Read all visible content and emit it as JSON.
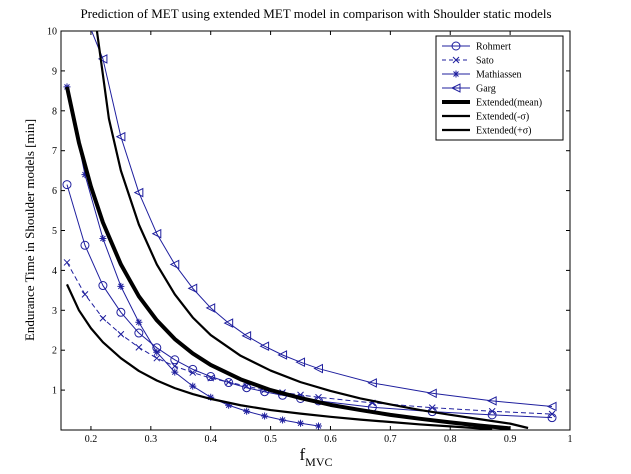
{
  "chart_data": {
    "type": "line",
    "title": "Prediction of MET using extended MET model in comparison with Shoulder static models",
    "xlabel_main": "f",
    "xlabel_sub": "MVC",
    "ylabel": "Endurance Time in Shoulder models [min]",
    "xlim": [
      0.15,
      1.0
    ],
    "ylim": [
      0,
      10
    ],
    "xticks": [
      0.2,
      0.3,
      0.4,
      0.5,
      0.6,
      0.7,
      0.8,
      0.9,
      1
    ],
    "xtick_labels": [
      "0.2",
      "0.3",
      "0.4",
      "0.5",
      "0.6",
      "0.7",
      "0.8",
      "0.9",
      "1"
    ],
    "yticks": [
      1,
      2,
      3,
      4,
      5,
      6,
      7,
      8,
      9,
      10
    ],
    "ytick_labels": [
      "1",
      "2",
      "3",
      "4",
      "5",
      "6",
      "7",
      "8",
      "9",
      "10"
    ],
    "grid": false,
    "legend_position": "top-right",
    "series": [
      {
        "name": "Rohmert",
        "color": "#1f1f9e",
        "marker": "circle",
        "dash": "solid",
        "width": 1,
        "x": [
          0.16,
          0.19,
          0.22,
          0.25,
          0.28,
          0.31,
          0.34,
          0.37,
          0.4,
          0.43,
          0.46,
          0.49,
          0.52,
          0.55,
          0.58,
          0.67,
          0.77,
          0.87,
          0.97
        ],
        "y": [
          6.15,
          4.63,
          3.62,
          2.95,
          2.43,
          2.06,
          1.76,
          1.52,
          1.34,
          1.19,
          1.06,
          0.96,
          0.87,
          0.79,
          0.73,
          0.57,
          0.46,
          0.38,
          0.31
        ]
      },
      {
        "name": "Sato",
        "color": "#1f1f9e",
        "marker": "x",
        "dash": "dashed",
        "width": 1,
        "x": [
          0.16,
          0.19,
          0.22,
          0.25,
          0.28,
          0.31,
          0.34,
          0.37,
          0.4,
          0.43,
          0.46,
          0.49,
          0.52,
          0.55,
          0.58,
          0.67,
          0.77,
          0.87,
          0.97
        ],
        "y": [
          4.2,
          3.4,
          2.8,
          2.4,
          2.07,
          1.8,
          1.6,
          1.44,
          1.3,
          1.2,
          1.1,
          1.0,
          0.94,
          0.88,
          0.82,
          0.68,
          0.56,
          0.47,
          0.4
        ]
      },
      {
        "name": "Mathiassen",
        "color": "#1f1f9e",
        "marker": "star",
        "dash": "solid",
        "width": 1,
        "x": [
          0.16,
          0.19,
          0.22,
          0.25,
          0.28,
          0.31,
          0.34,
          0.37,
          0.4,
          0.43,
          0.46,
          0.49,
          0.52,
          0.55,
          0.58
        ],
        "y": [
          8.6,
          6.4,
          4.8,
          3.6,
          2.7,
          1.95,
          1.45,
          1.1,
          0.82,
          0.62,
          0.47,
          0.35,
          0.25,
          0.17,
          0.1
        ]
      },
      {
        "name": "Garg",
        "color": "#1f1f9e",
        "marker": "triangle-left",
        "dash": "solid",
        "width": 1,
        "x": [
          0.185,
          0.22,
          0.25,
          0.28,
          0.31,
          0.34,
          0.37,
          0.4,
          0.43,
          0.46,
          0.49,
          0.52,
          0.55,
          0.58,
          0.67,
          0.77,
          0.87,
          0.97
        ],
        "y": [
          10.6,
          9.3,
          7.35,
          5.95,
          4.92,
          4.15,
          3.55,
          3.06,
          2.68,
          2.36,
          2.1,
          1.88,
          1.7,
          1.54,
          1.18,
          0.92,
          0.73,
          0.59
        ]
      },
      {
        "name": "Extended(mean)",
        "color": "#000000",
        "marker": "none",
        "dash": "solid",
        "width": 4,
        "x": [
          0.16,
          0.18,
          0.2,
          0.22,
          0.25,
          0.28,
          0.31,
          0.34,
          0.37,
          0.4,
          0.45,
          0.5,
          0.55,
          0.6,
          0.65,
          0.7,
          0.75,
          0.8,
          0.85,
          0.9
        ],
        "y": [
          8.6,
          7.2,
          6.1,
          5.2,
          4.15,
          3.35,
          2.75,
          2.28,
          1.92,
          1.63,
          1.27,
          1.0,
          0.8,
          0.63,
          0.5,
          0.38,
          0.28,
          0.19,
          0.11,
          0.04
        ]
      },
      {
        "name": "Extended(-σ)",
        "color": "#000000",
        "marker": "none",
        "dash": "solid",
        "width": 2.2,
        "x": [
          0.21,
          0.23,
          0.25,
          0.28,
          0.31,
          0.34,
          0.37,
          0.4,
          0.45,
          0.5,
          0.55,
          0.6,
          0.65,
          0.7,
          0.75,
          0.8,
          0.85,
          0.9,
          0.93
        ],
        "y": [
          10.0,
          7.8,
          6.5,
          5.15,
          4.15,
          3.4,
          2.82,
          2.38,
          1.86,
          1.49,
          1.2,
          0.98,
          0.79,
          0.64,
          0.5,
          0.38,
          0.27,
          0.16,
          0.05
        ]
      },
      {
        "name": "Extended(+σ)",
        "color": "#000000",
        "marker": "none",
        "dash": "solid",
        "width": 2.2,
        "x": [
          0.16,
          0.18,
          0.2,
          0.22,
          0.25,
          0.28,
          0.31,
          0.34,
          0.37,
          0.4,
          0.45,
          0.5,
          0.55,
          0.6,
          0.65,
          0.7,
          0.75,
          0.8,
          0.85,
          0.87
        ],
        "y": [
          3.65,
          3.0,
          2.55,
          2.2,
          1.8,
          1.48,
          1.24,
          1.05,
          0.9,
          0.78,
          0.62,
          0.5,
          0.41,
          0.33,
          0.26,
          0.2,
          0.14,
          0.09,
          0.04,
          0.02
        ]
      }
    ]
  }
}
